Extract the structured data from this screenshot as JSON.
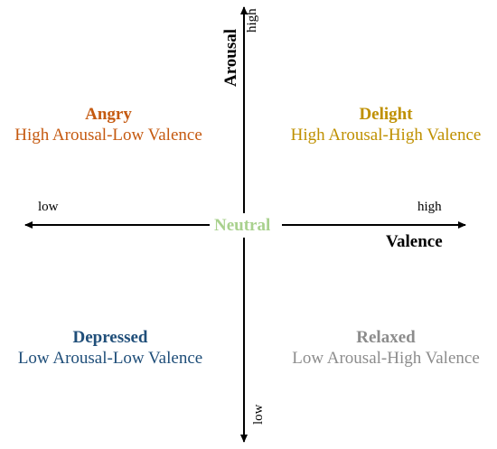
{
  "axes": {
    "x_title": "Valence",
    "x_low": "low",
    "x_high": "high",
    "y_title": "Arousal",
    "y_low": "low",
    "y_high": "high"
  },
  "center": {
    "label": "Neutral",
    "color": "#a9d18e"
  },
  "quadrants": {
    "top_left": {
      "title": "Angry",
      "subtitle": "High Arousal-Low Valence",
      "color": "#c55a11"
    },
    "top_right": {
      "title": "Delight",
      "subtitle": "High Arousal-High Valence",
      "color": "#bf9000"
    },
    "bottom_left": {
      "title": "Depressed",
      "subtitle": "Low Arousal-Low Valence",
      "color": "#1f4e79"
    },
    "bottom_right": {
      "title": "Relaxed",
      "subtitle": "Low Arousal-High Valence",
      "color": "#8c8c8c"
    }
  }
}
